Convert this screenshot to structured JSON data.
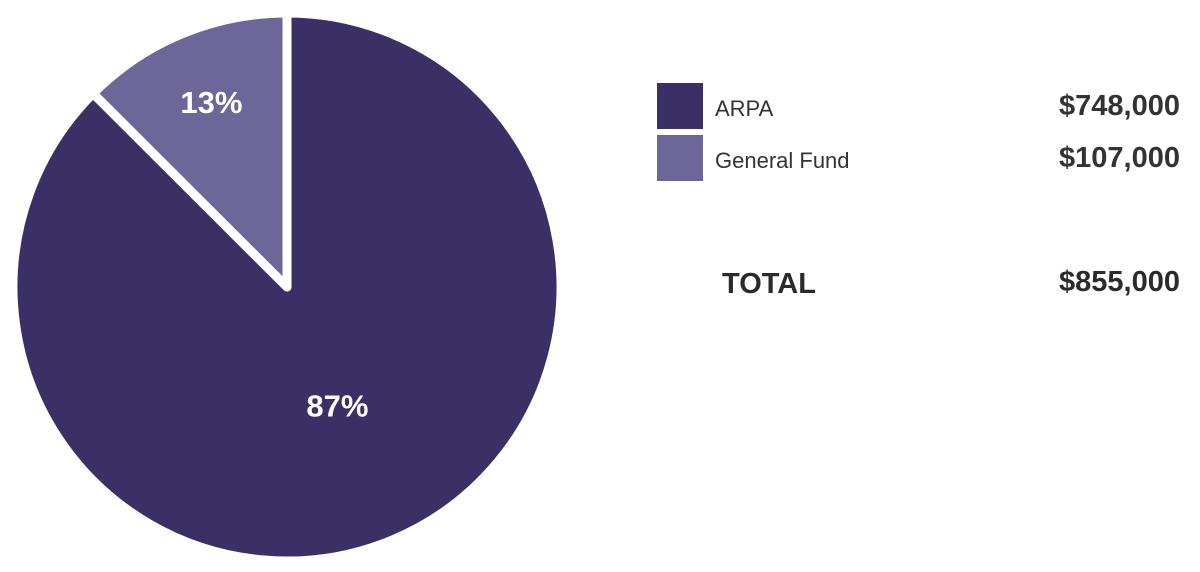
{
  "chart_data": {
    "type": "pie",
    "slices": [
      {
        "name": "ARPA",
        "value": 748000,
        "percent_label": "87%",
        "value_label": "$748,000",
        "color": "#3b3066"
      },
      {
        "name": "General Fund",
        "value": 107000,
        "percent_label": "13%",
        "value_label": "$107,000",
        "color": "#6c6699"
      }
    ],
    "total": {
      "label": "TOTAL",
      "value": 855000,
      "value_label": "$855,000"
    },
    "legend_position": "right"
  }
}
